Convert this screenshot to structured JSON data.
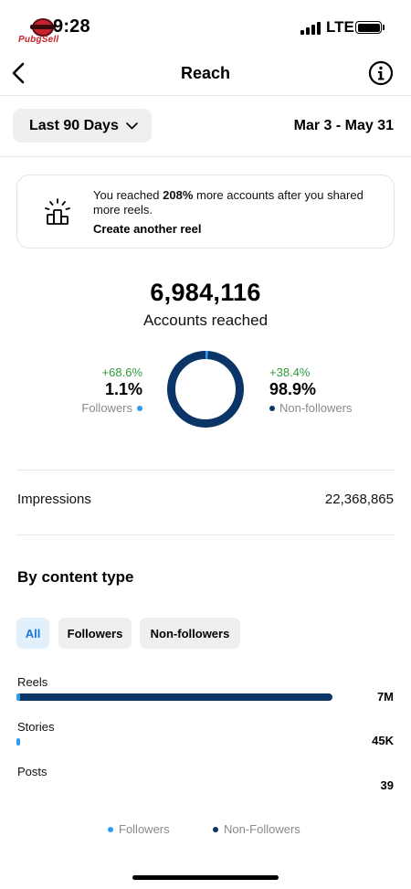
{
  "status_bar": {
    "time": "9:28",
    "network": "LTE",
    "logo_text": "PubgSell"
  },
  "header": {
    "title": "Reach",
    "back_icon": "chevron-left-icon",
    "info_icon": "info-icon"
  },
  "filter": {
    "period_label": "Last 90 Days",
    "date_range": "Mar 3 - May 31"
  },
  "tip": {
    "text_before": "You reached ",
    "text_bold": "208%",
    "text_after": " more accounts after you shared more reels.",
    "action": "Create another reel",
    "icon": "sparkle-podium-icon"
  },
  "reach": {
    "total": "6,984,116",
    "label": "Accounts reached"
  },
  "split": {
    "followers": {
      "change": "+68.6%",
      "value": "1.1%",
      "label": "Followers",
      "fraction": 0.011
    },
    "non_followers": {
      "change": "+38.4%",
      "value": "98.9%",
      "label": "Non-followers",
      "fraction": 0.989
    }
  },
  "impressions": {
    "label": "Impressions",
    "value": "22,368,865"
  },
  "content_type": {
    "title": "By content type",
    "chips": [
      "All",
      "Followers",
      "Non-followers"
    ],
    "active_chip": "All",
    "rows": [
      {
        "label": "Reels",
        "value": "7M",
        "total_fraction": 1.0,
        "followers_fraction": 0.011
      },
      {
        "label": "Stories",
        "value": "45K",
        "total_fraction": 0.0064,
        "followers_fraction": 1.0
      },
      {
        "label": "Posts",
        "value": "39",
        "total_fraction": 0.0,
        "followers_fraction": 0.0
      }
    ]
  },
  "legend": {
    "followers": "Followers",
    "non_followers": "Non-Followers"
  },
  "colors": {
    "followers": "#2f9cf0",
    "non_followers": "#0a3566",
    "positive": "#2e9a3c",
    "chip_active_bg": "#e2f0fc",
    "chip_active_text": "#1877d6"
  }
}
